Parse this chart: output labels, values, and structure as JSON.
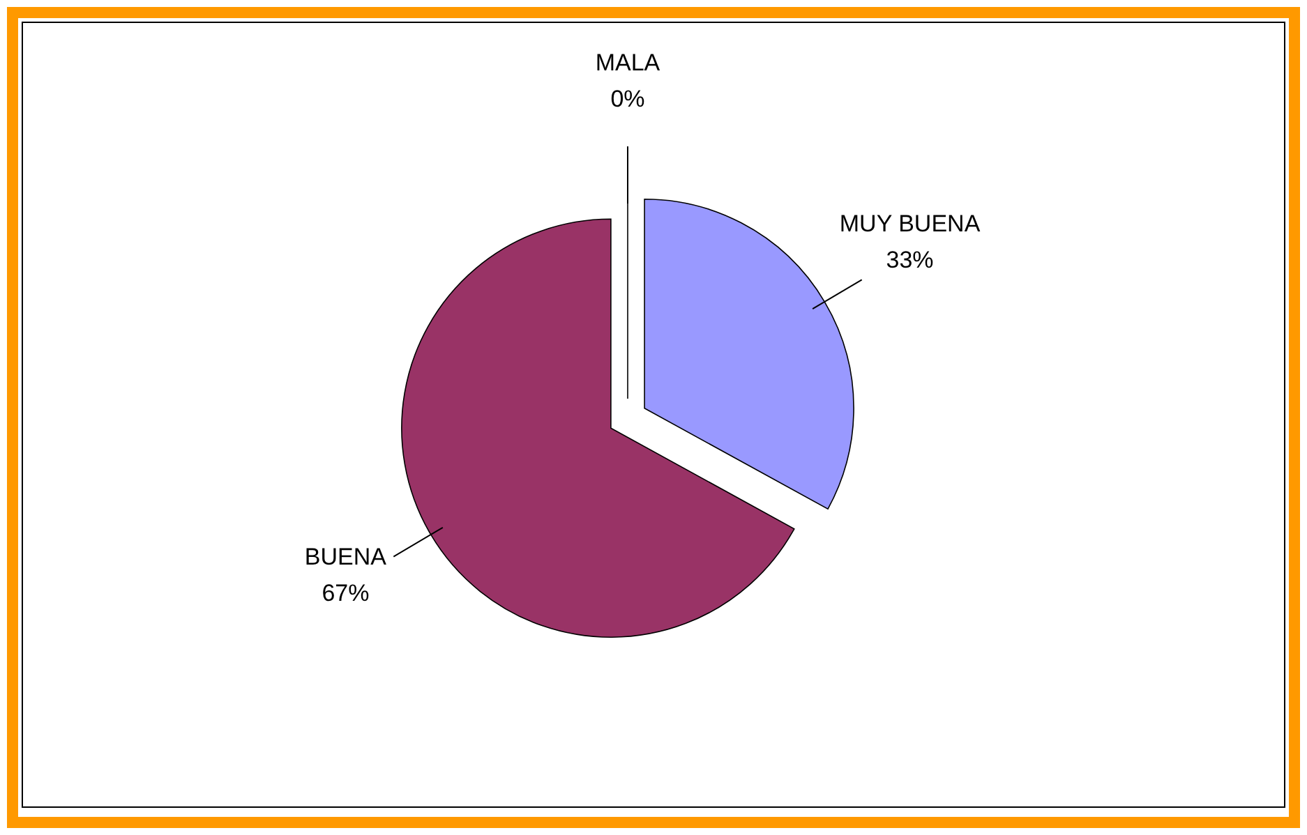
{
  "chart_data": {
    "type": "pie",
    "categories": [
      "MUY BUENA",
      "BUENA",
      "MALA"
    ],
    "values": [
      33,
      67,
      0
    ],
    "colors": [
      "#9999ff",
      "#993366",
      "#ffffcc"
    ],
    "value_labels": [
      "33%",
      "67%",
      "0%"
    ]
  }
}
